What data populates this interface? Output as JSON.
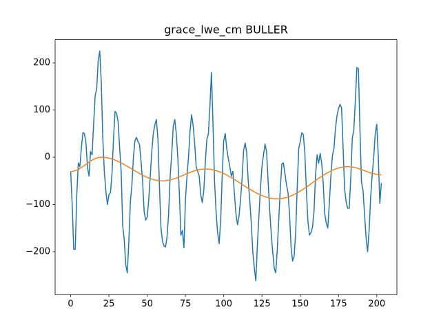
{
  "chart_data": {
    "type": "line",
    "title": "grace_lwe_cm BULLER",
    "x": [
      0,
      1,
      2,
      3,
      4,
      5,
      6,
      7,
      8,
      9,
      10,
      11,
      12,
      13,
      14,
      15,
      16,
      17,
      18,
      19,
      20,
      21,
      22,
      23,
      24,
      25,
      26,
      27,
      28,
      29,
      30,
      31,
      32,
      33,
      34,
      35,
      36,
      37,
      38,
      39,
      40,
      41,
      42,
      43,
      44,
      45,
      46,
      47,
      48,
      49,
      50,
      51,
      52,
      53,
      54,
      55,
      56,
      57,
      58,
      59,
      60,
      61,
      62,
      63,
      64,
      65,
      66,
      67,
      68,
      69,
      70,
      71,
      72,
      73,
      74,
      75,
      76,
      77,
      78,
      79,
      80,
      81,
      82,
      83,
      84,
      85,
      86,
      87,
      88,
      89,
      90,
      91,
      92,
      93,
      94,
      95,
      96,
      97,
      98,
      99,
      100,
      101,
      102,
      103,
      104,
      105,
      106,
      107,
      108,
      109,
      110,
      111,
      112,
      113,
      114,
      115,
      116,
      117,
      118,
      119,
      120,
      121,
      122,
      123,
      124,
      125,
      126,
      127,
      128,
      129,
      130,
      131,
      132,
      133,
      134,
      135,
      136,
      137,
      138,
      139,
      140,
      141,
      142,
      143,
      144,
      145,
      146,
      147,
      148,
      149,
      150,
      151,
      152,
      153,
      154,
      155,
      156,
      157,
      158,
      159,
      160,
      161,
      162,
      163,
      164,
      165,
      166,
      167,
      168,
      169,
      170,
      171,
      172,
      173,
      174,
      175,
      176,
      177,
      178,
      179,
      180,
      181,
      182,
      183,
      184,
      185,
      186,
      187,
      188,
      189,
      190,
      191,
      192,
      193,
      194,
      195,
      196,
      197,
      198,
      199,
      200,
      201,
      202,
      203
    ],
    "series": [
      {
        "color": "#1f77b4",
        "values": [
          -30,
          -100,
          -195,
          -195,
          -80,
          -12,
          -20,
          20,
          52,
          50,
          30,
          -22,
          -40,
          12,
          5,
          70,
          130,
          145,
          205,
          225,
          160,
          40,
          -30,
          -72,
          -100,
          -80,
          -75,
          -35,
          40,
          97,
          93,
          75,
          20,
          -30,
          -145,
          -175,
          -228,
          -245,
          -180,
          -95,
          -60,
          0,
          35,
          42,
          33,
          27,
          -10,
          -50,
          -115,
          -133,
          -127,
          -90,
          -40,
          12,
          50,
          68,
          80,
          40,
          -60,
          -150,
          -178,
          -188,
          -190,
          -168,
          -120,
          -40,
          5,
          65,
          80,
          50,
          0,
          -75,
          -165,
          -155,
          -192,
          -90,
          -40,
          0,
          55,
          90,
          68,
          30,
          -20,
          -30,
          -40,
          -80,
          -96,
          -70,
          -10,
          38,
          50,
          110,
          180,
          70,
          -50,
          -115,
          -160,
          -183,
          -135,
          -40,
          35,
          50,
          18,
          -3,
          -20,
          -40,
          -30,
          -78,
          -120,
          -143,
          -125,
          -90,
          -45,
          15,
          30,
          10,
          -50,
          -90,
          -140,
          -200,
          -235,
          -262,
          -185,
          -125,
          -65,
          -20,
          5,
          28,
          12,
          -50,
          -110,
          -160,
          -200,
          -235,
          -245,
          -195,
          -130,
          -65,
          -14,
          -12,
          -35,
          -58,
          -75,
          -120,
          -190,
          -220,
          -210,
          -160,
          -65,
          18,
          33,
          52,
          48,
          10,
          -70,
          -135,
          -165,
          -160,
          -148,
          -115,
          -38,
          5,
          -13,
          8,
          -12,
          -55,
          -120,
          -140,
          -150,
          -98,
          -40,
          3,
          18,
          60,
          88,
          103,
          112,
          105,
          20,
          -68,
          -95,
          -108,
          -108,
          -45,
          40,
          58,
          120,
          190,
          188,
          60,
          -52,
          -70,
          -120,
          -170,
          -200,
          -155,
          -85,
          -38,
          0,
          50,
          70,
          0,
          -98,
          -55
        ]
      },
      {
        "color": "#ff7f0e",
        "values": [
          -30,
          -29.8,
          -29.3,
          -28.4,
          -27.2,
          -25.6,
          -23.8,
          -21.8,
          -19.6,
          -17.3,
          -15,
          -12.7,
          -10.4,
          -8.2,
          -6.2,
          -4.4,
          -2.8,
          -1.6,
          -0.7,
          -0.2,
          0,
          -0.1,
          -0.3,
          -0.7,
          -1.2,
          -1.9,
          -2.7,
          -3.7,
          -4.8,
          -6,
          -7.3,
          -8.8,
          -10.3,
          -11.9,
          -13.7,
          -15.4,
          -17.3,
          -19.2,
          -21.1,
          -23,
          -25,
          -27,
          -28.9,
          -30.8,
          -32.7,
          -34.6,
          -36.3,
          -38.1,
          -39.7,
          -41.2,
          -42.7,
          -44,
          -45.2,
          -46.3,
          -47.3,
          -48.1,
          -48.8,
          -49.3,
          -49.7,
          -49.9,
          -50,
          -49.9,
          -49.7,
          -49.3,
          -48.8,
          -48.1,
          -47.3,
          -46.3,
          -45.3,
          -44.2,
          -42.9,
          -41.6,
          -40.3,
          -38.9,
          -37.5,
          -36.1,
          -34.7,
          -33.4,
          -32.1,
          -30.9,
          -29.7,
          -28.7,
          -27.7,
          -26.9,
          -26.2,
          -25.7,
          -25.3,
          -25.1,
          -25,
          -25.1,
          -25.3,
          -25.6,
          -26.1,
          -26.7,
          -27.5,
          -28.4,
          -29.4,
          -30.5,
          -31.8,
          -33.1,
          -34.6,
          -36.2,
          -37.8,
          -39.6,
          -41.4,
          -43.2,
          -45.2,
          -47.2,
          -49.2,
          -51.3,
          -53.4,
          -55.4,
          -57.6,
          -59.7,
          -61.7,
          -63.8,
          -65.8,
          -67.8,
          -69.8,
          -71.6,
          -73.4,
          -75.2,
          -76.8,
          -78.4,
          -79.9,
          -81.2,
          -82.5,
          -83.6,
          -84.6,
          -85.5,
          -86.3,
          -86.9,
          -87.4,
          -87.7,
          -87.9,
          -88,
          -87.9,
          -87.7,
          -87.3,
          -86.7,
          -86,
          -85.2,
          -84.2,
          -83,
          -81.8,
          -80.4,
          -78.8,
          -77.2,
          -75.5,
          -73.6,
          -71.7,
          -69.6,
          -67.5,
          -65.4,
          -63.2,
          -60.9,
          -58.6,
          -56.3,
          -54,
          -51.7,
          -49.4,
          -47.1,
          -44.8,
          -42.6,
          -40.5,
          -38.4,
          -36.3,
          -34.4,
          -32.5,
          -30.8,
          -29.2,
          -27.6,
          -26.2,
          -25,
          -23.8,
          -22.8,
          -22,
          -21.3,
          -20.7,
          -20.3,
          -20.1,
          -20,
          -20.1,
          -20.3,
          -20.8,
          -21.3,
          -22.1,
          -22.9,
          -23.9,
          -25,
          -26.1,
          -27.3,
          -28.5,
          -29.7,
          -30.9,
          -32,
          -33.1,
          -34.1,
          -34.9,
          -35.6,
          -36.2,
          -36.7,
          -36.9,
          -37
        ]
      }
    ],
    "xlim": [
      -10.15,
      213.15
    ],
    "ylim": [
      -291,
      249
    ],
    "xticks": [
      0,
      25,
      50,
      75,
      100,
      125,
      150,
      175,
      200
    ],
    "yticks": [
      {
        "value": -200,
        "label": "−200"
      },
      {
        "value": -100,
        "label": "−100"
      },
      0,
      100,
      200
    ]
  }
}
